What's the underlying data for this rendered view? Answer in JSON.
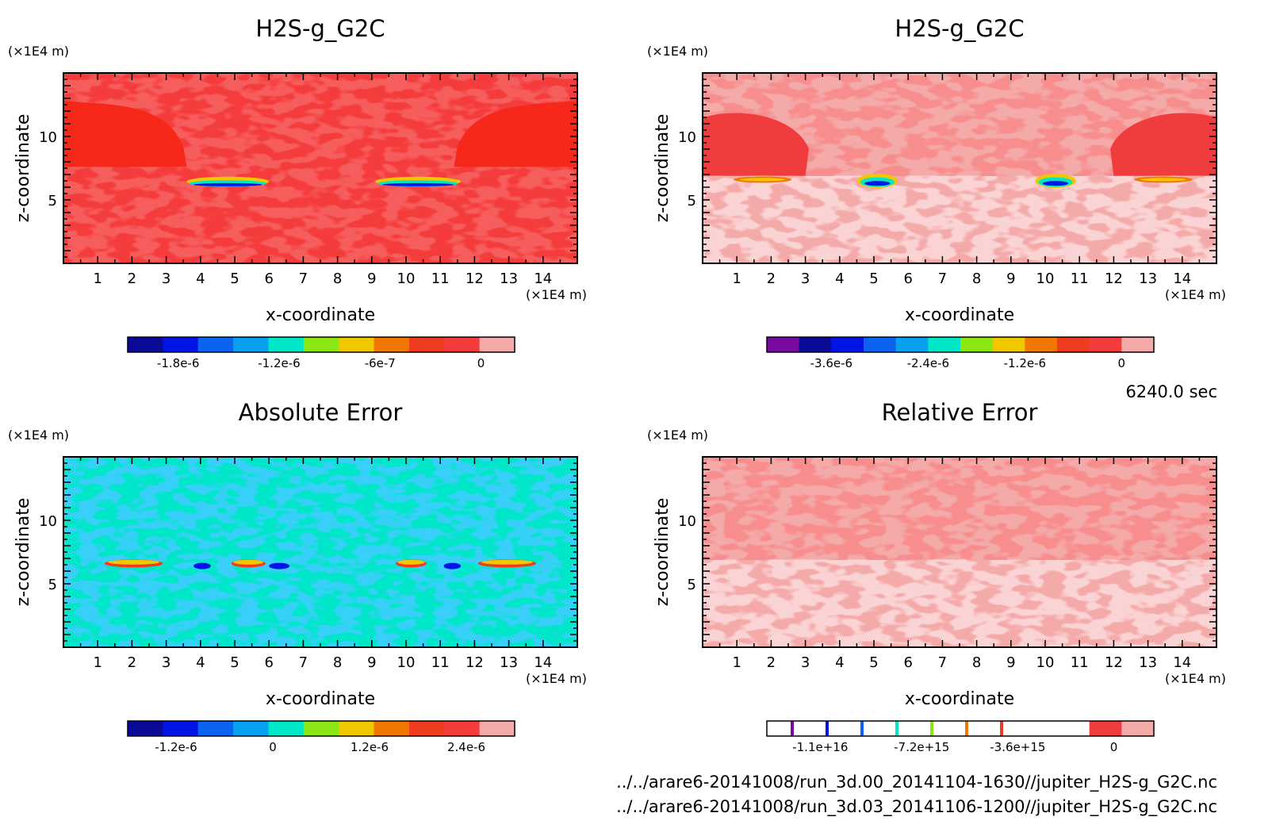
{
  "time_label": "6240.0 sec",
  "files": [
    "../../arare6-20141008/run_3d.00_20141104-1630//jupiter_H2S-g_G2C.nc",
    "../../arare6-20141008/run_3d.03_20141106-1200//jupiter_H2S-g_G2C.nc"
  ],
  "chart_data": [
    {
      "type": "heatmap",
      "title": "H2S-g_G2C",
      "xlabel": "x-coordinate",
      "ylabel": "z-coordinate",
      "xunit": "(×1E4 m)",
      "yunit": "(×1E4 m)",
      "xlim": [
        0,
        15
      ],
      "ylim": [
        0,
        15
      ],
      "xticks": [
        1,
        2,
        3,
        4,
        5,
        6,
        7,
        8,
        9,
        10,
        11,
        12,
        13,
        14
      ],
      "yticks": [
        5,
        10
      ],
      "colorbar": {
        "colors": [
          "#0a0a96",
          "#0014e6",
          "#0a64f0",
          "#0aa0f0",
          "#00e6c8",
          "#8ce614",
          "#f0c800",
          "#f07800",
          "#f03c1e",
          "#f53c3c",
          "#f5aaaa"
        ],
        "tick_labels": [
          "-1.8e-6",
          "-1.2e-6",
          "-6e-7",
          "0"
        ],
        "tick_positions": [
          -1.8e-06,
          -1.2e-06,
          -6e-07,
          0
        ],
        "range": [
          -2.1e-06,
          2e-07
        ]
      }
    },
    {
      "type": "heatmap",
      "title": "H2S-g_G2C",
      "xlabel": "x-coordinate",
      "ylabel": "z-coordinate",
      "xunit": "(×1E4 m)",
      "yunit": "(×1E4 m)",
      "xlim": [
        0,
        15
      ],
      "ylim": [
        0,
        15
      ],
      "xticks": [
        1,
        2,
        3,
        4,
        5,
        6,
        7,
        8,
        9,
        10,
        11,
        12,
        13,
        14
      ],
      "yticks": [
        5,
        10
      ],
      "colorbar": {
        "colors": [
          "#780aa0",
          "#0a0a96",
          "#0014e6",
          "#0a64f0",
          "#0aa0f0",
          "#00e6c8",
          "#8ce614",
          "#f0c800",
          "#f07800",
          "#f03c1e",
          "#f53c3c",
          "#f5aaaa"
        ],
        "tick_labels": [
          "-3.6e-6",
          "-2.4e-6",
          "-1.2e-6",
          "0"
        ],
        "tick_positions": [
          -3.6e-06,
          -2.4e-06,
          -1.2e-06,
          0
        ],
        "range": [
          -4.4e-06,
          4e-07
        ]
      }
    },
    {
      "type": "heatmap",
      "title": "Absolute Error",
      "xlabel": "x-coordinate",
      "ylabel": "z-coordinate",
      "xunit": "(×1E4 m)",
      "yunit": "(×1E4 m)",
      "xlim": [
        0,
        15
      ],
      "ylim": [
        0,
        15
      ],
      "xticks": [
        1,
        2,
        3,
        4,
        5,
        6,
        7,
        8,
        9,
        10,
        11,
        12,
        13,
        14
      ],
      "yticks": [
        5,
        10
      ],
      "colorbar": {
        "colors": [
          "#0a0a96",
          "#0014e6",
          "#0a64f0",
          "#0aa0f0",
          "#00e6c8",
          "#8ce614",
          "#f0c800",
          "#f07800",
          "#f03c1e",
          "#f53c3c",
          "#f5aaaa"
        ],
        "tick_labels": [
          "-1.2e-6",
          "0",
          "1.2e-6",
          "2.4e-6"
        ],
        "tick_positions": [
          -1.2e-06,
          0,
          1.2e-06,
          2.4e-06
        ],
        "range": [
          -1.8e-06,
          3e-06
        ]
      }
    },
    {
      "type": "heatmap",
      "title": "Relative Error",
      "xlabel": "x-coordinate",
      "ylabel": "z-coordinate",
      "xunit": "(×1E4 m)",
      "yunit": "(×1E4 m)",
      "xlim": [
        0,
        15
      ],
      "ylim": [
        0,
        15
      ],
      "xticks": [
        1,
        2,
        3,
        4,
        5,
        6,
        7,
        8,
        9,
        10,
        11,
        12,
        13,
        14
      ],
      "yticks": [
        5,
        10
      ],
      "colorbar": {
        "colors": [
          "#ffffff",
          "#ffffff",
          "#ffffff",
          "#ffffff",
          "#ffffff",
          "#ffffff",
          "#ffffff",
          "#ffffff",
          "#ffffff",
          "#ffffff",
          "#f03c3c",
          "#f5aaaa"
        ],
        "slivers": [
          "#780aa0",
          "#0014e6",
          "#0a64f0",
          "#00e6c8",
          "#8ce614",
          "#f07800",
          "#f03c1e"
        ],
        "tick_labels": [
          "-1.1e+16",
          "-7.2e+15",
          "-3.6e+15",
          "0"
        ],
        "tick_positions": [
          -1.1e+16,
          -7200000000000000.0,
          -3600000000000000.0,
          0
        ],
        "range": [
          -1.3e+16,
          1500000000000000.0
        ]
      }
    }
  ]
}
